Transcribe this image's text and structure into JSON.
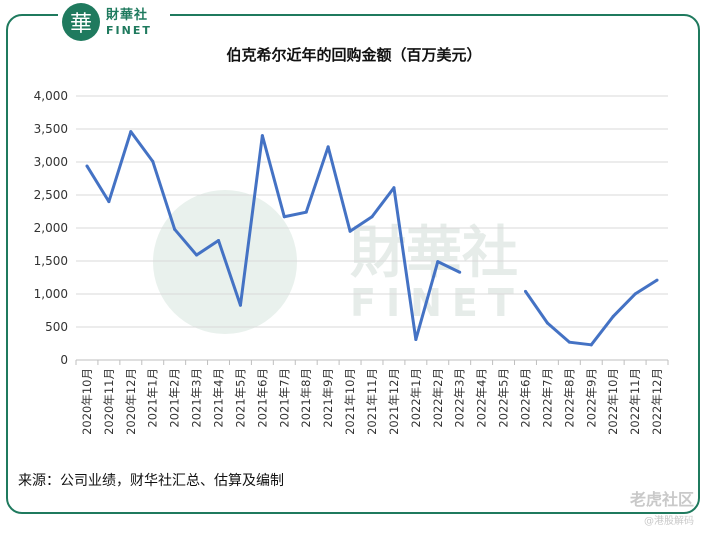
{
  "header": {
    "logo_glyph": "華",
    "logo_cn": "財華社",
    "logo_en": "FINET"
  },
  "watermark_bg": {
    "cn": "財華社",
    "en": "FINET"
  },
  "source_note": "来源：公司业绩，财华社汇总、估算及编制",
  "corner_watermark": {
    "main": "老虎社区",
    "sub": "@港股解码"
  },
  "colors": {
    "line": "#4472c4",
    "frame": "#1f7a5e",
    "grid": "#d9d9d9",
    "watermark": "#e3ece8"
  },
  "chart_data": {
    "type": "line",
    "title": "伯克希尔近年的回购金额（百万美元）",
    "xlabel": "",
    "ylabel": "",
    "ylim": [
      0,
      4000
    ],
    "yticks": [
      "0",
      "500",
      "1,000",
      "1,500",
      "2,000",
      "2,500",
      "3,000",
      "3,500",
      "4,000"
    ],
    "ytick_values": [
      0,
      500,
      1000,
      1500,
      2000,
      2500,
      3000,
      3500,
      4000
    ],
    "grid": true,
    "legend": "none",
    "categories": [
      "2020年10月",
      "2020年11月",
      "2020年12月",
      "2021年1月",
      "2021年2月",
      "2021年3月",
      "2021年4月",
      "2021年5月",
      "2021年6月",
      "2021年7月",
      "2021年8月",
      "2021年9月",
      "2021年10月",
      "2021年11月",
      "2021年12月",
      "2022年1月",
      "2022年2月",
      "2022年3月",
      "2022年4月",
      "2022年5月",
      "2022年6月",
      "2022年7月",
      "2022年8月",
      "2022年9月",
      "2022年10月",
      "2022年11月",
      "2022年12月"
    ],
    "series": [
      {
        "values": [
          2940,
          2400,
          3460,
          3010,
          1980,
          1590,
          1810,
          830,
          3400,
          2170,
          2240,
          3230,
          1950,
          2170,
          2610,
          310,
          1490,
          1330,
          null,
          null,
          1040,
          560,
          270,
          230,
          660,
          1000,
          1210
        ]
      }
    ]
  }
}
